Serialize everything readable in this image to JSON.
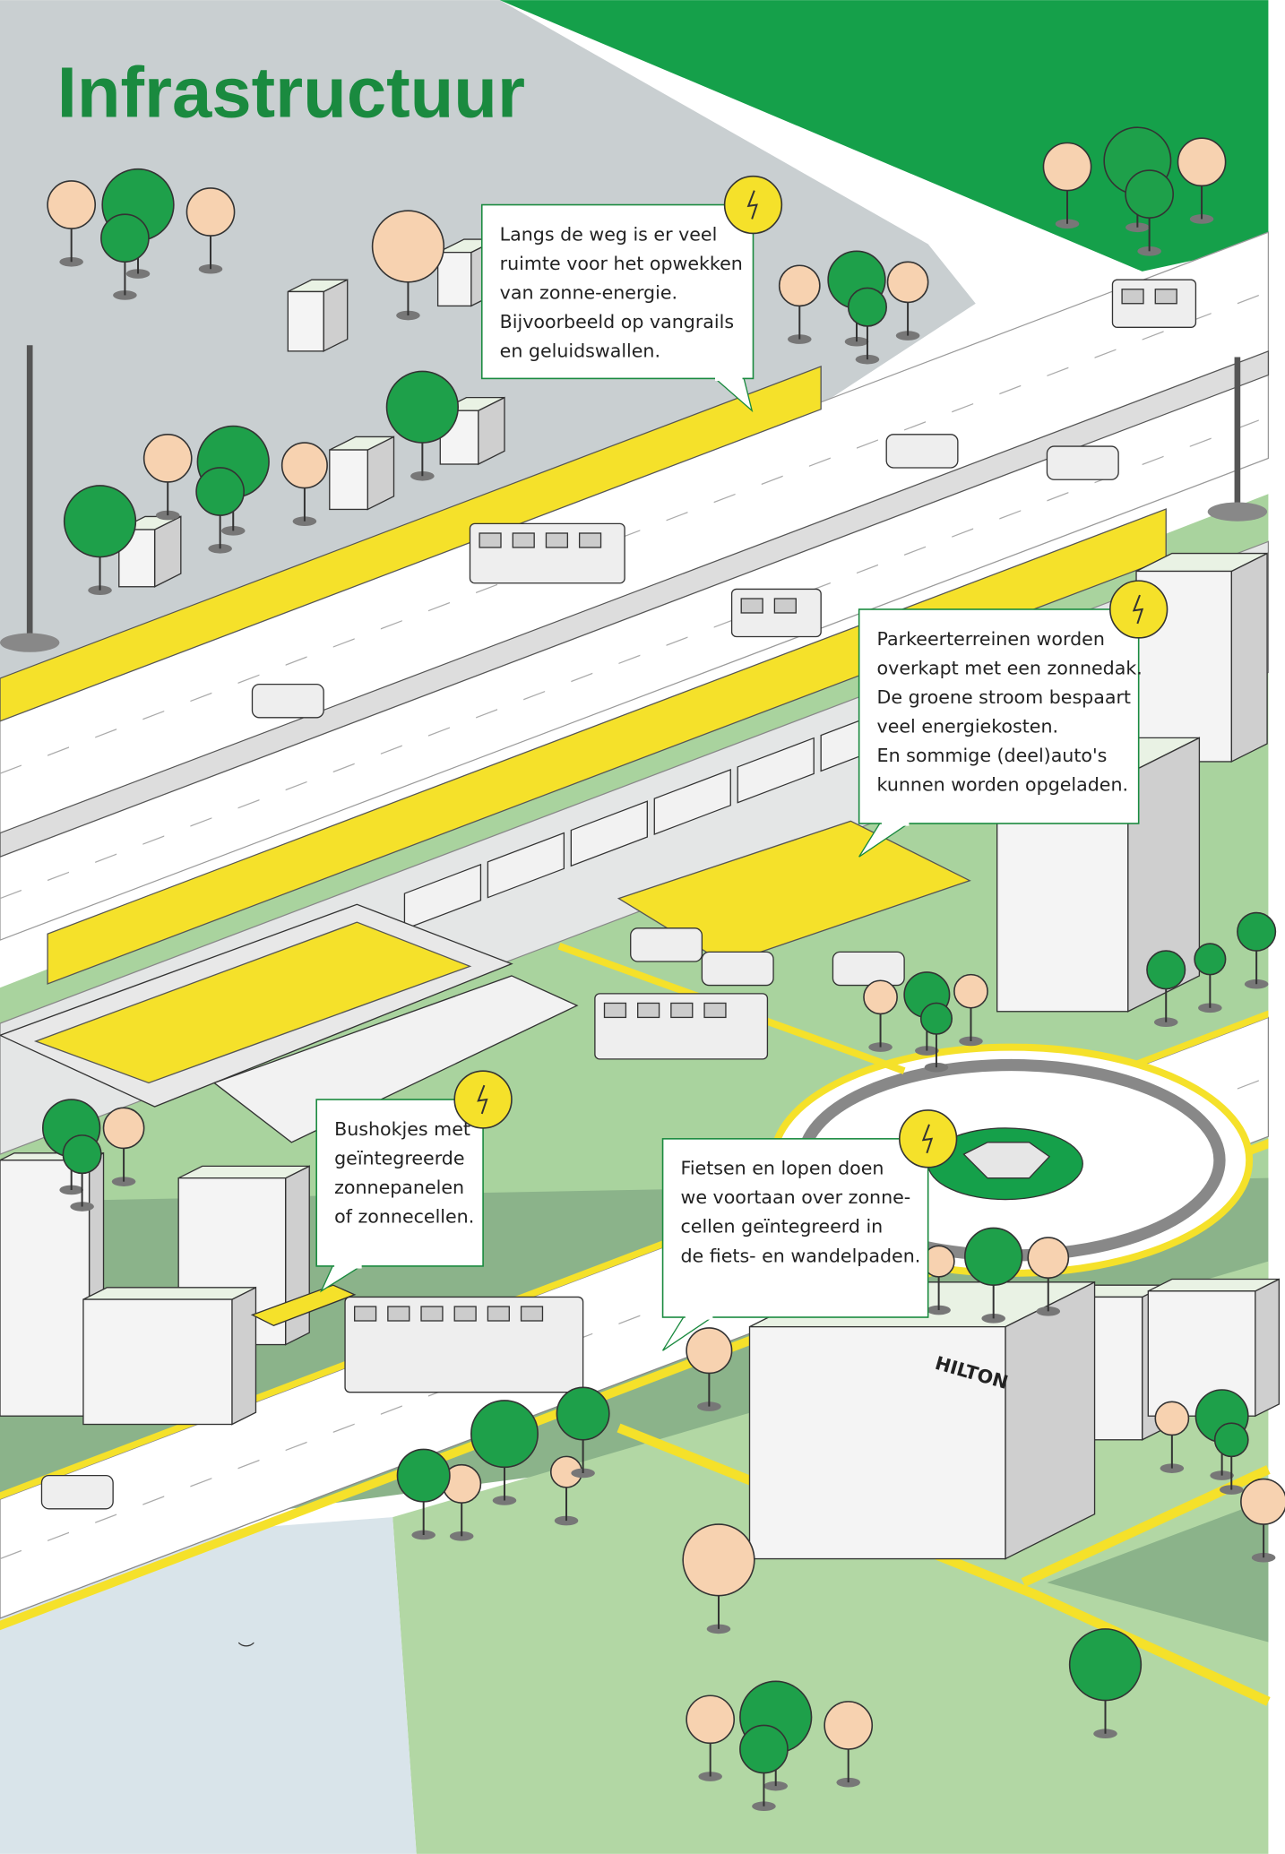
{
  "title": "Infrastructuur",
  "callouts": [
    {
      "lines": [
        "Langs de weg is er veel",
        "ruimte voor het opwekken",
        "van zonne-energie.",
        "Bijvoorbeeld op vangrails",
        "en geluidswallen."
      ]
    },
    {
      "lines": [
        "Parkeerterreinen worden",
        "overkapt met een zonnedak.",
        "De groene stroom bespaart",
        "veel energiekosten.",
        "En sommige (deel)auto's",
        "kunnen worden opgeladen."
      ]
    },
    {
      "lines": [
        "Bushokjes met",
        "geïntegreerde",
        "zonnepanelen",
        "of zonnecellen."
      ]
    },
    {
      "lines": [
        "Fietsen en lopen doen",
        "we voortaan over zonne-",
        "cellen geïntegreerd in",
        "de fiets- en wandelpaden."
      ]
    }
  ],
  "hotel_sign": "HILTON"
}
